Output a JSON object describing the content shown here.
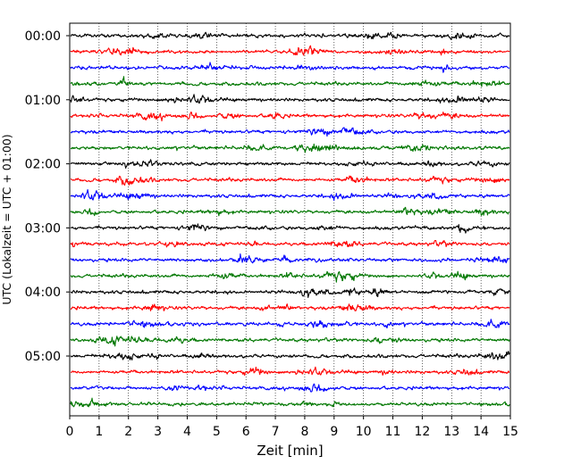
{
  "chart_data": {
    "type": "line",
    "subtype": "helicorder",
    "title": "",
    "xlabel": "Zeit  [min]",
    "ylabel": "UTC (Lokalzeit = UTC + 01:00)",
    "xlim": [
      0,
      15
    ],
    "x_ticks": [
      "0",
      "1",
      "2",
      "3",
      "4",
      "5",
      "6",
      "7",
      "8",
      "9",
      "10",
      "11",
      "12",
      "13",
      "14",
      "15"
    ],
    "y_ticks": [
      "00:00",
      "01:00",
      "02:00",
      "03:00",
      "04:00",
      "05:00"
    ],
    "grid": "vertical dotted at each minute",
    "trace_interval_min": 15,
    "trace_colors": [
      "#000000",
      "#ff0000",
      "#0000ff",
      "#007700"
    ],
    "traces": [
      {
        "start": "00:00",
        "color": "#000000"
      },
      {
        "start": "00:15",
        "color": "#ff0000"
      },
      {
        "start": "00:30",
        "color": "#0000ff"
      },
      {
        "start": "00:45",
        "color": "#007700"
      },
      {
        "start": "01:00",
        "color": "#000000"
      },
      {
        "start": "01:15",
        "color": "#ff0000"
      },
      {
        "start": "01:30",
        "color": "#0000ff"
      },
      {
        "start": "01:45",
        "color": "#007700"
      },
      {
        "start": "02:00",
        "color": "#000000"
      },
      {
        "start": "02:15",
        "color": "#ff0000"
      },
      {
        "start": "02:30",
        "color": "#0000ff"
      },
      {
        "start": "02:45",
        "color": "#007700"
      },
      {
        "start": "03:00",
        "color": "#000000"
      },
      {
        "start": "03:15",
        "color": "#ff0000"
      },
      {
        "start": "03:30",
        "color": "#0000ff"
      },
      {
        "start": "03:45",
        "color": "#007700"
      },
      {
        "start": "04:00",
        "color": "#000000"
      },
      {
        "start": "04:15",
        "color": "#ff0000"
      },
      {
        "start": "04:30",
        "color": "#0000ff"
      },
      {
        "start": "04:45",
        "color": "#007700"
      },
      {
        "start": "05:00",
        "color": "#000000"
      },
      {
        "start": "05:15",
        "color": "#ff0000"
      },
      {
        "start": "05:30",
        "color": "#0000ff"
      },
      {
        "start": "05:45",
        "color": "#007700"
      }
    ]
  }
}
